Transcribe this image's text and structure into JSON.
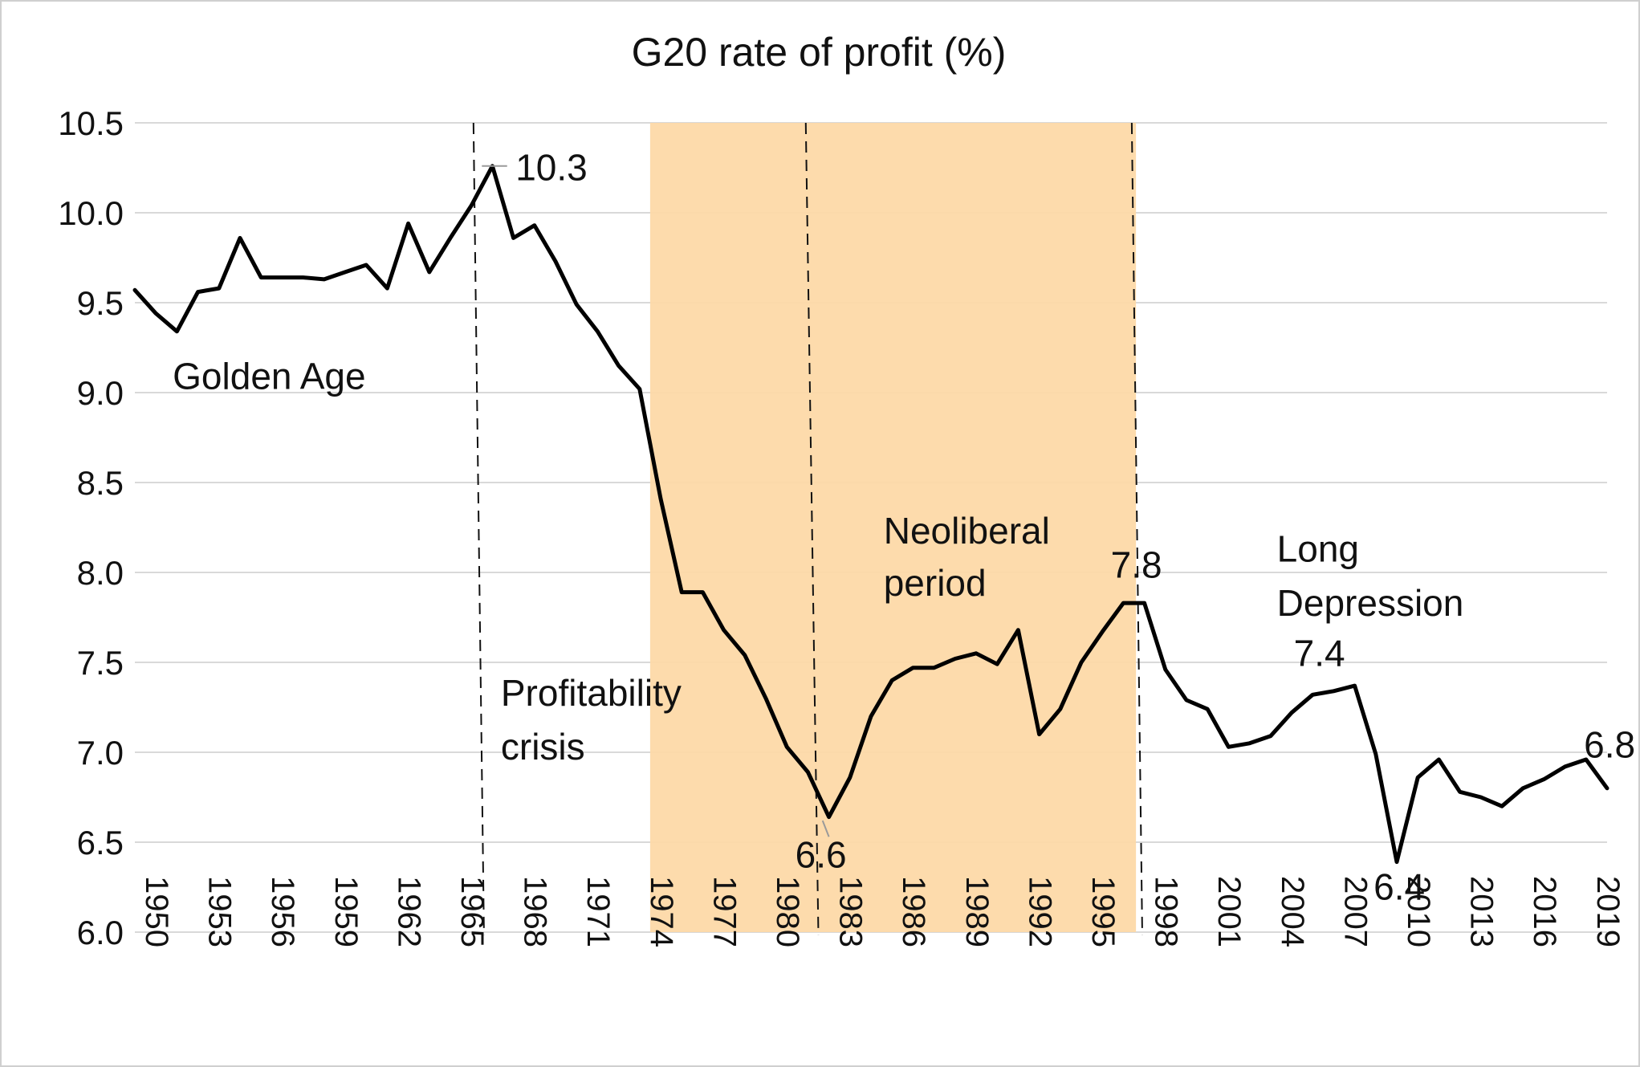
{
  "chart_data": {
    "type": "line",
    "title": "G20 rate of profit (%)",
    "xlabel": "",
    "ylabel": "",
    "ylim": [
      6.0,
      10.5
    ],
    "xlim": [
      1950,
      2020
    ],
    "grid": "horizontal",
    "legend": "none",
    "y_ticks": [
      "6.0",
      "6.5",
      "7.0",
      "7.5",
      "8.0",
      "8.5",
      "9.0",
      "9.5",
      "10.0",
      "10.5"
    ],
    "x_ticks": [
      "1950",
      "1953",
      "1956",
      "1959",
      "1962",
      "1965",
      "1968",
      "1971",
      "1974",
      "1977",
      "1980",
      "1983",
      "1986",
      "1989",
      "1992",
      "1995",
      "1998",
      "2001",
      "2004",
      "2007",
      "2010",
      "2013",
      "2016",
      "2019"
    ],
    "series": [
      {
        "x": [
          1950,
          1951,
          1952,
          1953,
          1954,
          1955,
          1956,
          1957,
          1958,
          1959,
          1960,
          1961,
          1962,
          1963,
          1964,
          1965,
          1966,
          1967,
          1968,
          1969,
          1970,
          1971,
          1972,
          1973,
          1974,
          1975,
          1976,
          1977,
          1978,
          1979,
          1980,
          1981,
          1982,
          1983,
          1984,
          1985,
          1986,
          1987,
          1988,
          1989,
          1990,
          1991,
          1992,
          1993,
          1994,
          1995,
          1996,
          1997,
          1998,
          1999,
          2000,
          2001,
          2002,
          2003,
          2004,
          2005,
          2006,
          2007,
          2008,
          2009,
          2010,
          2011,
          2012,
          2013,
          2014,
          2015,
          2016,
          2017,
          2018,
          2019,
          2020
        ],
        "values": [
          9.57,
          9.44,
          9.34,
          9.56,
          9.58,
          9.86,
          9.64,
          9.64,
          9.64,
          9.63,
          9.67,
          9.71,
          9.58,
          9.94,
          9.67,
          9.86,
          10.04,
          10.26,
          9.86,
          9.93,
          9.73,
          9.49,
          9.34,
          9.15,
          9.02,
          8.41,
          7.89,
          7.89,
          7.68,
          7.54,
          7.3,
          7.03,
          6.89,
          6.64,
          6.86,
          7.2,
          7.4,
          7.47,
          7.47,
          7.52,
          7.55,
          7.49,
          7.68,
          7.1,
          7.24,
          7.5,
          7.67,
          7.83,
          7.83,
          7.46,
          7.29,
          7.24,
          7.03,
          7.05,
          7.09,
          7.22,
          7.32,
          7.34,
          7.37,
          6.99,
          6.39,
          6.86,
          6.96,
          6.78,
          6.75,
          6.7,
          6.8,
          6.85,
          6.92,
          6.96,
          6.8
        ],
        "color": "#000000"
      }
    ],
    "shaded_period": {
      "from": 1974.5,
      "to": 1997.6,
      "color": "#fdd9a8"
    },
    "vertical_lines": [
      {
        "x_top": 1966.1,
        "x_bottom": 1966.6,
        "style": "dashed"
      },
      {
        "x_top": 1981.9,
        "x_bottom": 1982.5,
        "style": "dashed"
      },
      {
        "x_top": 1997.4,
        "x_bottom": 1997.9,
        "style": "dashed"
      }
    ],
    "annotations": [
      {
        "text": "10.3",
        "x": 1968.1,
        "y": 10.18
      },
      {
        "text": "Golden Age",
        "x": 1951.8,
        "y": 9.02
      },
      {
        "text": "Profitability",
        "x": 1967.4,
        "y": 7.26
      },
      {
        "text": "crisis",
        "x": 1967.4,
        "y": 6.96
      },
      {
        "text": "Neoliberal",
        "x": 1985.6,
        "y": 8.16
      },
      {
        "text": "period",
        "x": 1985.6,
        "y": 7.87
      },
      {
        "text": "7.8",
        "x": 1996.4,
        "y": 7.97
      },
      {
        "text": "Long",
        "x": 2004.3,
        "y": 8.06
      },
      {
        "text": "Depression",
        "x": 2004.3,
        "y": 7.76
      },
      {
        "text": "7.4",
        "x": 2005.1,
        "y": 7.48
      },
      {
        "text": "6.8",
        "x": 2018.9,
        "y": 6.97
      },
      {
        "text": "6.6",
        "x": 1981.4,
        "y": 6.36
      },
      {
        "text": "6.4",
        "x": 2008.9,
        "y": 6.18
      }
    ],
    "leaders": [
      {
        "x1": 1966.5,
        "y1": 10.26,
        "x2": 1967.7,
        "y2": 10.26
      },
      {
        "x1": 1982.7,
        "y1": 6.62,
        "x2": 1983.0,
        "y2": 6.53
      }
    ]
  },
  "colors": {
    "line": "#000000",
    "shade": "#fdd9a8",
    "grid": "#d9d9d9"
  }
}
